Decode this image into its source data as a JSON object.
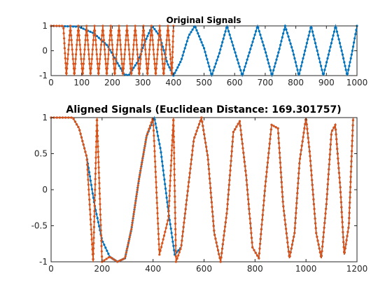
{
  "chart_data": [
    {
      "type": "line",
      "title": "Original Signals",
      "xlim": [
        0,
        1000
      ],
      "ylim": [
        -1,
        1
      ],
      "xticks": [
        0,
        100,
        200,
        300,
        400,
        500,
        600,
        700,
        800,
        900,
        1000
      ],
      "yticks": [
        -1,
        0,
        1
      ],
      "grid": false,
      "series": [
        {
          "color": "#0072BD",
          "marker": "dot",
          "description": "chirp-like cosine over samples 1–1000; frequency increasing (period ~480 at start, ~70 at end)",
          "points": [
            [
              0,
              1
            ],
            [
              90,
              0.97
            ],
            [
              140,
              0.7
            ],
            [
              185,
              0.2
            ],
            [
              215,
              -0.45
            ],
            [
              240,
              -0.97
            ],
            [
              255,
              -0.97
            ],
            [
              285,
              -0.4
            ],
            [
              305,
              0.3
            ],
            [
              330,
              1
            ],
            [
              355,
              0.6
            ],
            [
              380,
              -0.5
            ],
            [
              400,
              -1
            ],
            [
              425,
              -0.4
            ],
            [
              450,
              0.6
            ],
            [
              470,
              1
            ],
            [
              500,
              0.1
            ],
            [
              525,
              -1
            ],
            [
              550,
              -0.1
            ],
            [
              575,
              1
            ],
            [
              600,
              0
            ],
            [
              625,
              -1
            ],
            [
              650,
              0
            ],
            [
              675,
              1
            ],
            [
              700,
              0
            ],
            [
              722,
              -1
            ],
            [
              745,
              0
            ],
            [
              765,
              1
            ],
            [
              790,
              0
            ],
            [
              810,
              -1
            ],
            [
              830,
              0
            ],
            [
              850,
              1
            ],
            [
              870,
              0
            ],
            [
              890,
              -1
            ],
            [
              910,
              0
            ],
            [
              930,
              1
            ],
            [
              950,
              0
            ],
            [
              968,
              -1
            ],
            [
              985,
              0
            ],
            [
              1000,
              1
            ]
          ]
        },
        {
          "color": "#D95319",
          "marker": "dot",
          "description": "rapidly oscillating ±1 signal over samples 1–400 (~15 cycles)",
          "points": [
            [
              0,
              1
            ],
            [
              40,
              1
            ],
            [
              50,
              -1
            ],
            [
              63,
              1
            ],
            [
              76,
              -1
            ],
            [
              89,
              1
            ],
            [
              103,
              -1
            ],
            [
              116,
              1
            ],
            [
              129,
              -1
            ],
            [
              142,
              1
            ],
            [
              155,
              -1
            ],
            [
              169,
              1
            ],
            [
              182,
              -1
            ],
            [
              195,
              1
            ],
            [
              208,
              -1
            ],
            [
              222,
              1
            ],
            [
              235,
              -1
            ],
            [
              248,
              1
            ],
            [
              262,
              -1
            ],
            [
              275,
              1
            ],
            [
              288,
              -1
            ],
            [
              302,
              1
            ],
            [
              315,
              -1
            ],
            [
              328,
              1
            ],
            [
              342,
              -1
            ],
            [
              355,
              1
            ],
            [
              368,
              -1
            ],
            [
              382,
              1
            ],
            [
              395,
              -1
            ],
            [
              400,
              1
            ]
          ]
        }
      ]
    },
    {
      "type": "line",
      "title": "Aligned Signals (Euclidean Distance: 169.301757)",
      "xlim": [
        0,
        1200
      ],
      "ylim": [
        -1,
        1
      ],
      "xticks": [
        0,
        200,
        400,
        600,
        800,
        1000,
        1200
      ],
      "yticks": [
        -1,
        -0.5,
        0,
        0.5,
        1
      ],
      "grid": false,
      "series": [
        {
          "color": "#0072BD",
          "marker": "dot",
          "description": "warped blue signal",
          "points": [
            [
              0,
              1
            ],
            [
              85,
              1
            ],
            [
              110,
              0.85
            ],
            [
              140,
              0.45
            ],
            [
              170,
              -0.2
            ],
            [
              200,
              -0.7
            ],
            [
              230,
              -0.93
            ],
            [
              260,
              -1
            ],
            [
              290,
              -0.95
            ],
            [
              315,
              -0.55
            ],
            [
              345,
              0.15
            ],
            [
              375,
              0.75
            ],
            [
              405,
              1
            ],
            [
              430,
              0.55
            ],
            [
              460,
              -0.3
            ],
            [
              485,
              -0.9
            ],
            [
              510,
              -0.8
            ],
            [
              535,
              -0.05
            ],
            [
              560,
              0.7
            ],
            [
              590,
              1
            ],
            [
              615,
              0.45
            ],
            [
              640,
              -0.6
            ],
            [
              665,
              -1
            ],
            [
              690,
              -0.3
            ],
            [
              715,
              0.8
            ],
            [
              740,
              0.95
            ],
            [
              765,
              0.2
            ],
            [
              790,
              -0.8
            ],
            [
              815,
              -0.95
            ],
            [
              840,
              0.05
            ],
            [
              865,
              0.9
            ],
            [
              890,
              0.85
            ],
            [
              910,
              -0.2
            ],
            [
              935,
              -0.95
            ],
            [
              955,
              -0.6
            ],
            [
              975,
              0.4
            ],
            [
              1000,
              1
            ],
            [
              1015,
              0.5
            ],
            [
              1040,
              -0.6
            ],
            [
              1060,
              -0.95
            ],
            [
              1080,
              -0.2
            ],
            [
              1100,
              0.8
            ],
            [
              1115,
              0.9
            ],
            [
              1135,
              0
            ],
            [
              1150,
              -0.9
            ],
            [
              1168,
              -0.5
            ],
            [
              1185,
              1
            ]
          ]
        },
        {
          "color": "#D95319",
          "marker": "dot",
          "description": "warped orange signal aligned to blue",
          "points": [
            [
              0,
              1
            ],
            [
              85,
              1
            ],
            [
              110,
              0.85
            ],
            [
              140,
              0.45
            ],
            [
              165,
              -1
            ],
            [
              180,
              1
            ],
            [
              200,
              -1
            ],
            [
              230,
              -0.93
            ],
            [
              260,
              -1
            ],
            [
              290,
              -0.95
            ],
            [
              315,
              -0.55
            ],
            [
              345,
              0.15
            ],
            [
              375,
              0.75
            ],
            [
              400,
              1
            ],
            [
              425,
              -0.9
            ],
            [
              460,
              -0.4
            ],
            [
              480,
              1
            ],
            [
              490,
              -1
            ],
            [
              510,
              -0.8
            ],
            [
              535,
              -0.05
            ],
            [
              560,
              0.7
            ],
            [
              590,
              1
            ],
            [
              615,
              0.45
            ],
            [
              640,
              -0.6
            ],
            [
              665,
              -1
            ],
            [
              690,
              -0.3
            ],
            [
              715,
              0.8
            ],
            [
              740,
              0.95
            ],
            [
              765,
              0.2
            ],
            [
              790,
              -0.8
            ],
            [
              815,
              -0.95
            ],
            [
              840,
              0.05
            ],
            [
              865,
              0.9
            ],
            [
              890,
              0.85
            ],
            [
              910,
              -0.2
            ],
            [
              935,
              -0.95
            ],
            [
              955,
              -0.6
            ],
            [
              975,
              0.4
            ],
            [
              1000,
              1
            ],
            [
              1015,
              0.5
            ],
            [
              1040,
              -0.6
            ],
            [
              1060,
              -0.95
            ],
            [
              1080,
              -0.2
            ],
            [
              1100,
              0.8
            ],
            [
              1115,
              0.9
            ],
            [
              1135,
              0
            ],
            [
              1150,
              -0.9
            ],
            [
              1168,
              -0.5
            ],
            [
              1185,
              1
            ]
          ]
        }
      ]
    }
  ]
}
